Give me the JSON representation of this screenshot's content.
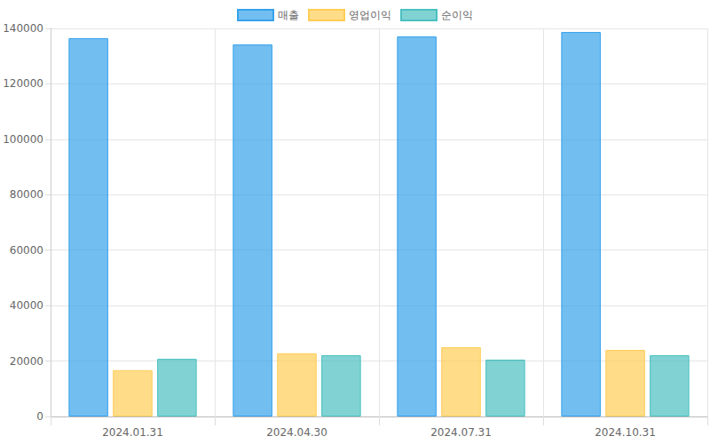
{
  "chart_data": {
    "type": "bar",
    "categories": [
      "2024.01.31",
      "2024.04.30",
      "2024.07.31",
      "2024.10.31"
    ],
    "series": [
      {
        "name": "매출",
        "color": "#36a2eb",
        "values": [
          136500,
          134200,
          137100,
          138700
        ]
      },
      {
        "name": "영업이익",
        "color": "#ffcd56",
        "values": [
          16700,
          22800,
          25000,
          24000
        ]
      },
      {
        "name": "순이익",
        "color": "#4bc0c0",
        "values": [
          20800,
          22100,
          20500,
          22100
        ]
      }
    ],
    "ylim": [
      0,
      140000
    ],
    "yticks": [
      0,
      20000,
      40000,
      60000,
      80000,
      100000,
      120000,
      140000
    ],
    "grid": true,
    "legend": "top"
  }
}
